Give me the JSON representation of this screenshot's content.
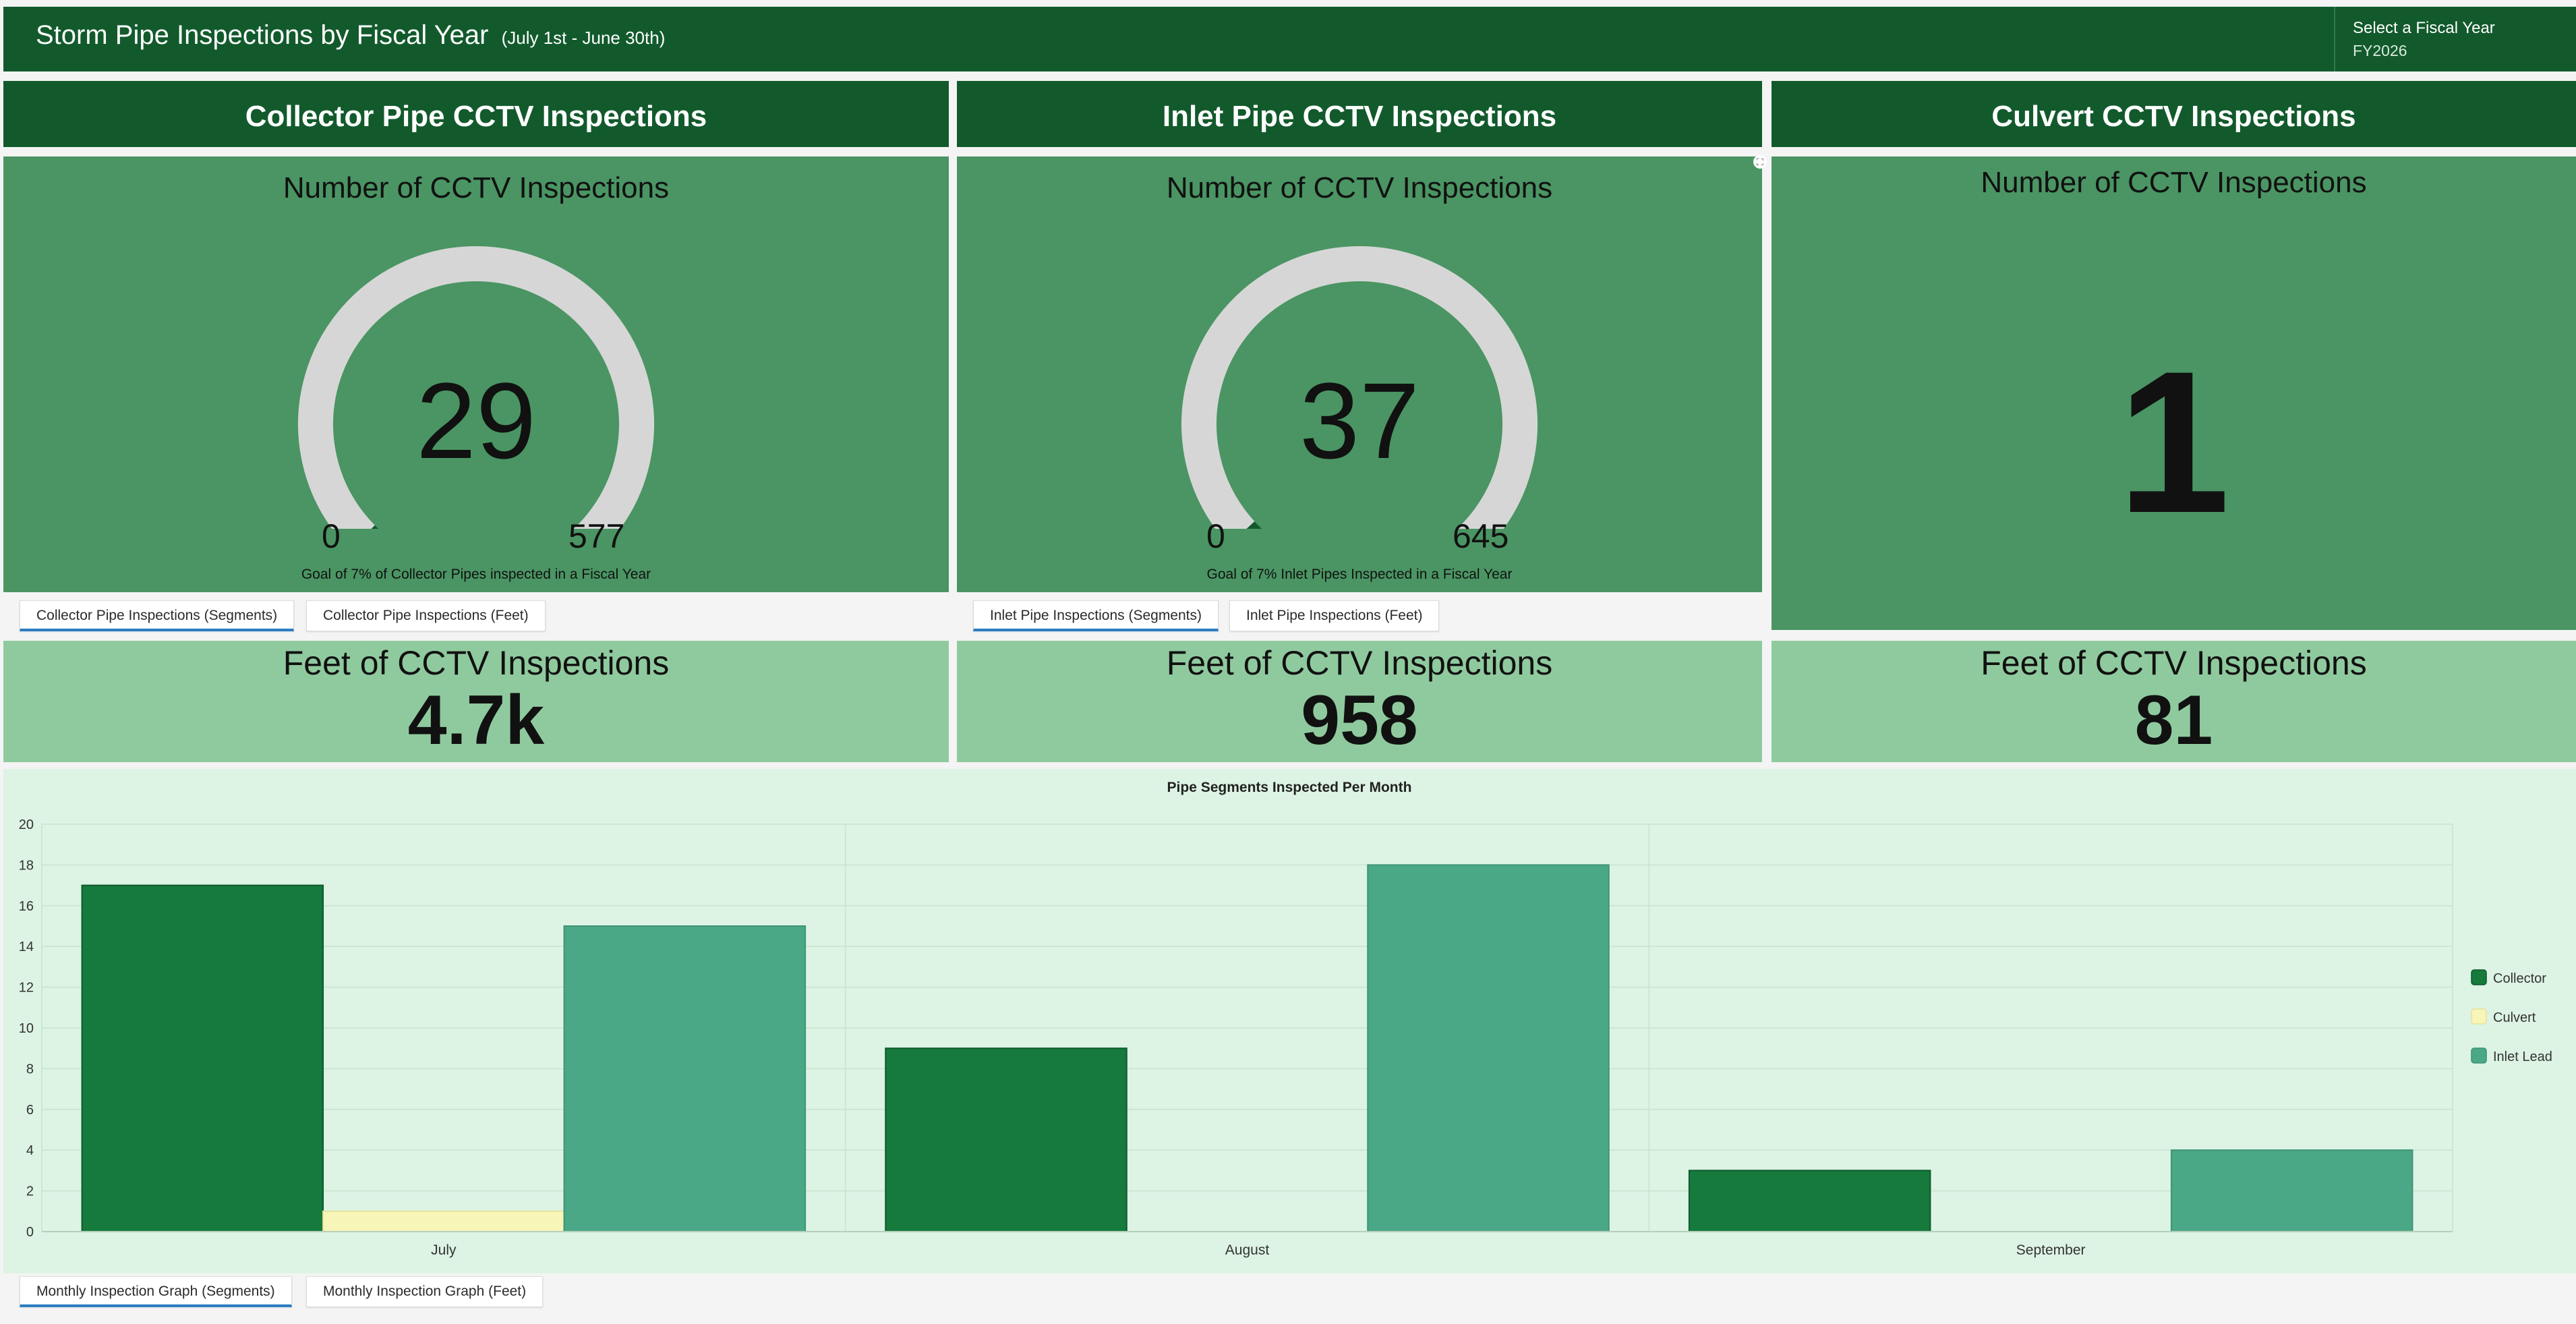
{
  "header": {
    "title": "Storm Pipe Inspections by Fiscal Year",
    "subtitle": "(July 1st - June 30th)",
    "fiscal_label": "Select a Fiscal Year",
    "fiscal_value": "FY2026"
  },
  "panels": {
    "collector": {
      "title": "Collector Pipe CCTV Inspections",
      "gauge_heading": "Number of CCTV Inspections",
      "value": "29",
      "value_num": 29,
      "min": "0",
      "min_num": 0,
      "max": "577",
      "max_num": 577,
      "note": "Goal of 7% of Collector Pipes inspected in a Fiscal Year",
      "tabs": [
        "Collector Pipe Inspections (Segments)",
        "Collector Pipe Inspections (Feet)"
      ],
      "feet_heading": "Feet of CCTV Inspections",
      "feet_value": "4.7k"
    },
    "inlet": {
      "title": "Inlet Pipe CCTV Inspections",
      "gauge_heading": "Number of CCTV Inspections",
      "value": "37",
      "value_num": 37,
      "min": "0",
      "min_num": 0,
      "max": "645",
      "max_num": 645,
      "note": "Goal of 7% Inlet Pipes Inspected in a Fiscal Year",
      "tabs": [
        "Inlet Pipe Inspections (Segments)",
        "Inlet Pipe Inspections (Feet)"
      ],
      "feet_heading": "Feet of CCTV Inspections",
      "feet_value": "958"
    },
    "culvert": {
      "title": "Culvert CCTV Inspections",
      "gauge_heading": "Number of CCTV Inspections",
      "value": "1",
      "feet_heading": "Feet of CCTV Inspections",
      "feet_value": "81"
    }
  },
  "chart_tabs": [
    "Monthly Inspection Graph (Segments)",
    "Monthly Inspection Graph (Feet)"
  ],
  "colors": {
    "header": "#125a2c",
    "gauge_panel": "#4a9563",
    "feet_panel": "#8fca9e",
    "gauge_track": "#d6d6d6",
    "gauge_fill": "#125a2c",
    "collector": "#157a3c",
    "culvert": "#f7f5b8",
    "inlet_lead": "#4aa887"
  },
  "chart_data": {
    "type": "bar",
    "title": "Pipe Segments Inspected Per Month",
    "categories": [
      "July",
      "August",
      "September"
    ],
    "series": [
      {
        "name": "Collector",
        "values": [
          17,
          9,
          3
        ]
      },
      {
        "name": "Culvert",
        "values": [
          1,
          0,
          0
        ]
      },
      {
        "name": "Inlet Lead",
        "values": [
          15,
          18,
          4
        ]
      }
    ],
    "ylim": [
      0,
      20
    ],
    "yticks": [
      0,
      2,
      4,
      6,
      8,
      10,
      12,
      14,
      16,
      18,
      20
    ],
    "xlabel": "",
    "ylabel": "",
    "legend": "right",
    "grid": true
  }
}
